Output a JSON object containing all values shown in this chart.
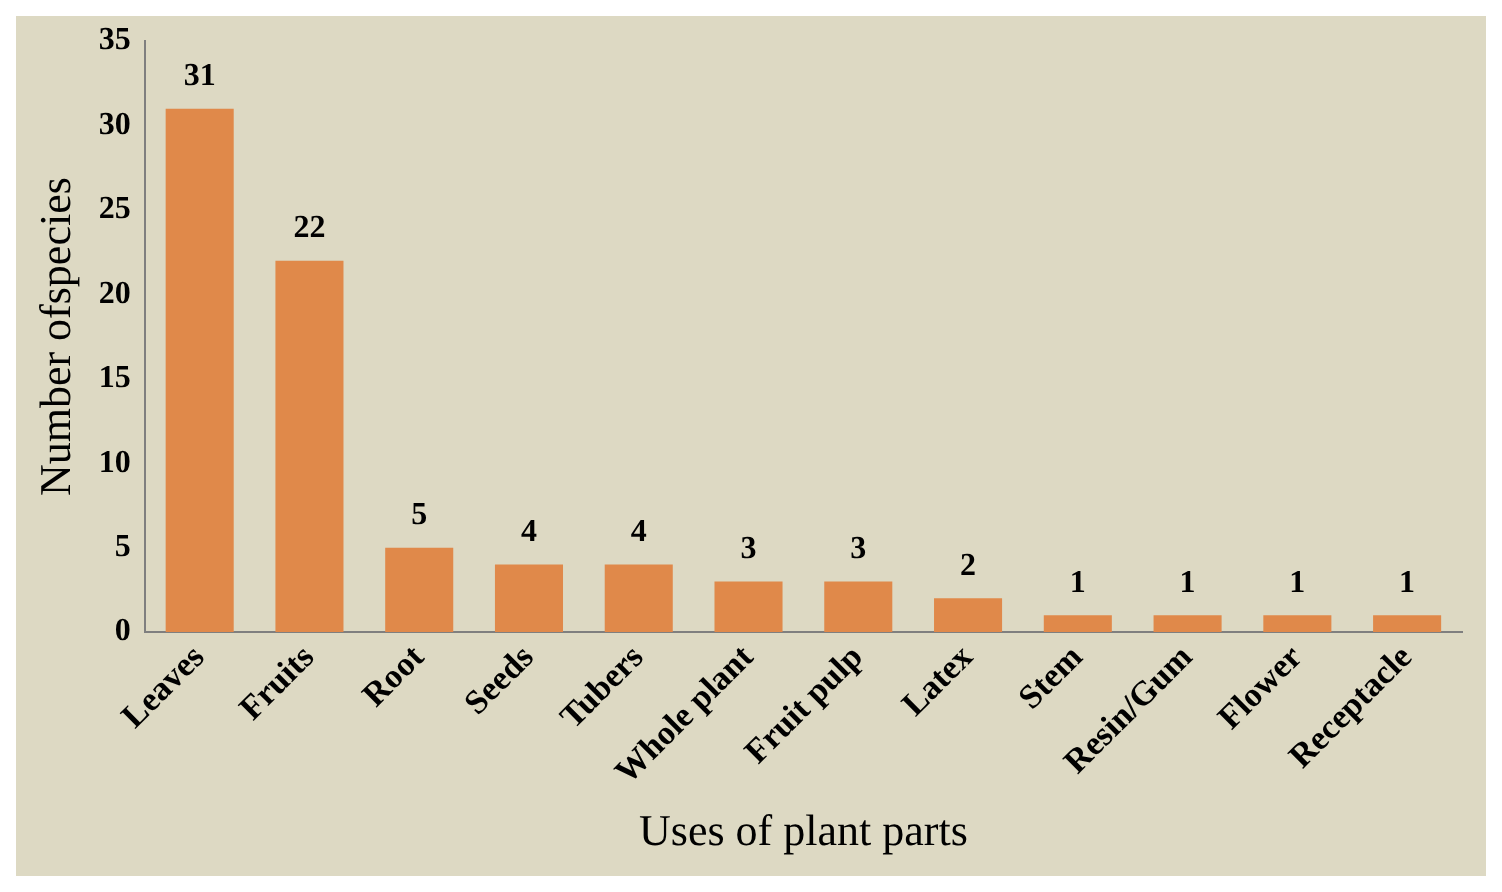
{
  "chart_data": {
    "type": "bar",
    "xlabel": "Uses of plant parts",
    "ylabel": "Number ofspecies",
    "categories": [
      "Leaves",
      "Fruits",
      "Root",
      "Seeds",
      "Tubers",
      "Whole plant",
      "Fruit pulp",
      "Latex",
      "Stem",
      "Resin/Gum",
      "Flower",
      "Receptacle"
    ],
    "values": [
      31,
      22,
      5,
      4,
      4,
      3,
      3,
      2,
      1,
      1,
      1,
      1
    ],
    "color": "#e0894a",
    "ylim": [
      0,
      35
    ],
    "yticks": [
      0,
      5,
      10,
      15,
      20,
      25,
      30,
      35
    ],
    "grid": false,
    "legend": false,
    "data_labels": true
  }
}
